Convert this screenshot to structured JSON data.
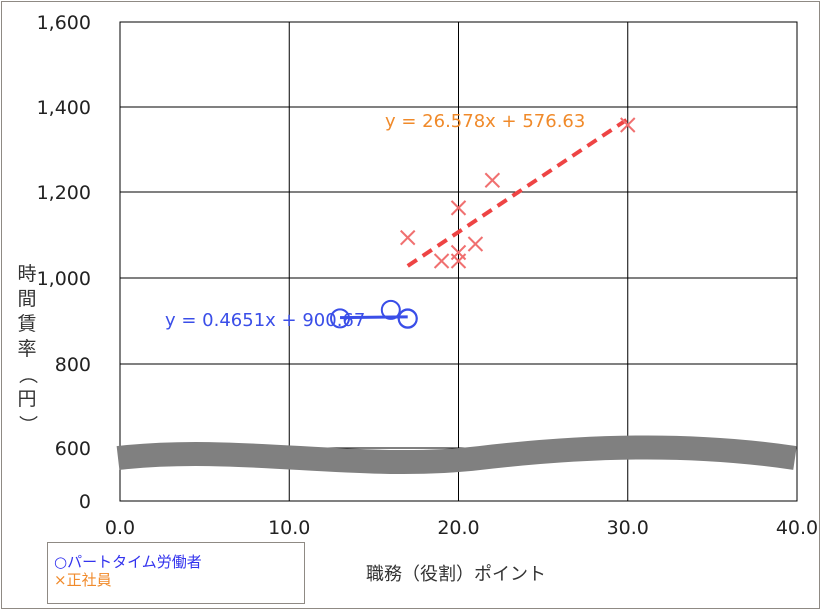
{
  "chart_data": {
    "type": "scatter",
    "title": "",
    "xlabel": "職務（役割）ポイント",
    "ylabel": "時間賃率（円）",
    "xlim": [
      0,
      40
    ],
    "ylim": [
      600,
      1600
    ],
    "grid": true,
    "y_axis_break": {
      "between": [
        0,
        600
      ],
      "bottom_tick": 0
    },
    "x_ticks": [
      "0.0",
      "10.0",
      "20.0",
      "30.0",
      "40.0"
    ],
    "y_ticks": [
      "0",
      "600",
      "800",
      "1,000",
      "1,200",
      "1,400",
      "1,600"
    ],
    "series": [
      {
        "name": "パートタイム労働者",
        "marker": "circle",
        "color": "#3a4ee8",
        "points": [
          [
            13,
            905
          ],
          [
            16,
            925
          ],
          [
            17,
            905
          ],
          [
            17,
            904
          ]
        ],
        "trendline": {
          "slope": 0.4651,
          "intercept": 900.67,
          "x_range": [
            13,
            17
          ],
          "color": "#3a4ee8",
          "label": "y = 0.4651x + 900.67"
        }
      },
      {
        "name": "正社員",
        "marker": "x",
        "color": "#f07070",
        "points": [
          [
            17,
            1095
          ],
          [
            19,
            1040
          ],
          [
            20,
            1040
          ],
          [
            20,
            1060
          ],
          [
            20,
            1165
          ],
          [
            21,
            1080
          ],
          [
            22,
            1230
          ],
          [
            30,
            1360
          ]
        ],
        "trendline": {
          "slope": 26.578,
          "intercept": 576.63,
          "x_range": [
            17,
            30
          ],
          "color": "#ee4444",
          "label": "y = 26.578x + 576.63"
        }
      }
    ]
  },
  "legend": {
    "part_time": "○パートタイム労働者",
    "full_time": "×正社員"
  }
}
